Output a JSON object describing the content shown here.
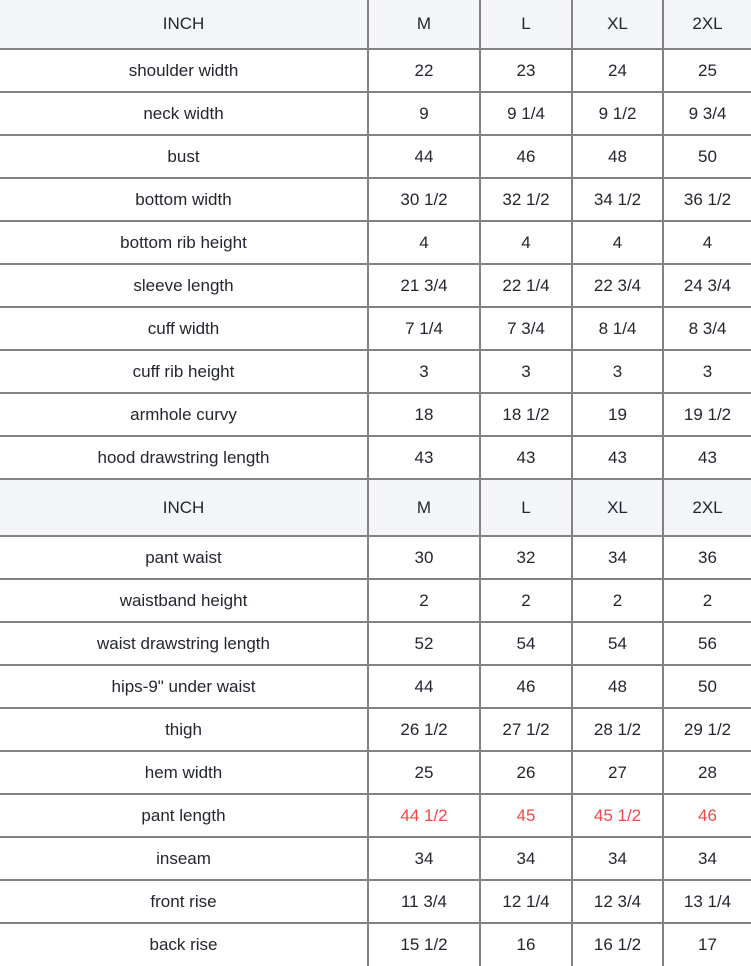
{
  "unit_label": "INCH",
  "size_columns": [
    "M",
    "L",
    "XL",
    "2XL"
  ],
  "colors": {
    "highlight_text": "#f0484b",
    "header_background": "#f4f5f8",
    "border": "#828282",
    "body_text": "#23262e"
  },
  "chart_data": {
    "type": "table",
    "title": "",
    "columns": [
      "INCH",
      "M",
      "L",
      "XL",
      "2XL"
    ],
    "sections": [
      {
        "header": {
          "label": "INCH",
          "sizes": [
            "M",
            "L",
            "XL",
            "2XL"
          ]
        },
        "rows": [
          {
            "label": "shoulder width",
            "values": [
              "22",
              "23",
              "24",
              "25"
            ],
            "highlight": false
          },
          {
            "label": "neck width",
            "values": [
              "9",
              "9 1/4",
              "9 1/2",
              "9 3/4"
            ],
            "highlight": false
          },
          {
            "label": "bust",
            "values": [
              "44",
              "46",
              "48",
              "50"
            ],
            "highlight": false
          },
          {
            "label": "bottom width",
            "values": [
              "30 1/2",
              "32 1/2",
              "34 1/2",
              "36 1/2"
            ],
            "highlight": false
          },
          {
            "label": "bottom rib height",
            "values": [
              "4",
              "4",
              "4",
              "4"
            ],
            "highlight": false
          },
          {
            "label": "sleeve length",
            "values": [
              "21 3/4",
              "22 1/4",
              "22 3/4",
              "24 3/4"
            ],
            "highlight": false
          },
          {
            "label": "cuff width",
            "values": [
              "7 1/4",
              "7 3/4",
              "8 1/4",
              "8 3/4"
            ],
            "highlight": false
          },
          {
            "label": "cuff rib height",
            "values": [
              "3",
              "3",
              "3",
              "3"
            ],
            "highlight": false
          },
          {
            "label": "armhole curvy",
            "values": [
              "18",
              "18 1/2",
              "19",
              "19 1/2"
            ],
            "highlight": false
          },
          {
            "label": "hood drawstring length",
            "values": [
              "43",
              "43",
              "43",
              "43"
            ],
            "highlight": false
          }
        ]
      },
      {
        "header": {
          "label": "INCH",
          "sizes": [
            "M",
            "L",
            "XL",
            "2XL"
          ]
        },
        "rows": [
          {
            "label": "pant waist",
            "values": [
              "30",
              "32",
              "34",
              "36"
            ],
            "highlight": false
          },
          {
            "label": "waistband height",
            "values": [
              "2",
              "2",
              "2",
              "2"
            ],
            "highlight": false
          },
          {
            "label": "waist drawstring length",
            "values": [
              "52",
              "54",
              "54",
              "56"
            ],
            "highlight": false
          },
          {
            "label": "hips-9\" under waist",
            "values": [
              "44",
              "46",
              "48",
              "50"
            ],
            "highlight": false
          },
          {
            "label": "thigh",
            "values": [
              "26 1/2",
              "27 1/2",
              "28 1/2",
              "29 1/2"
            ],
            "highlight": false
          },
          {
            "label": "hem width",
            "values": [
              "25",
              "26",
              "27",
              "28"
            ],
            "highlight": false
          },
          {
            "label": "pant length",
            "values": [
              "44 1/2",
              "45",
              "45 1/2",
              "46"
            ],
            "highlight": true
          },
          {
            "label": "inseam",
            "values": [
              "34",
              "34",
              "34",
              "34"
            ],
            "highlight": false
          },
          {
            "label": "front rise",
            "values": [
              "11 3/4",
              "12 1/4",
              "12 3/4",
              "13 1/4"
            ],
            "highlight": false
          },
          {
            "label": "back rise",
            "values": [
              "15 1/2",
              "16",
              "16 1/2",
              "17"
            ],
            "highlight": false
          }
        ]
      }
    ]
  }
}
